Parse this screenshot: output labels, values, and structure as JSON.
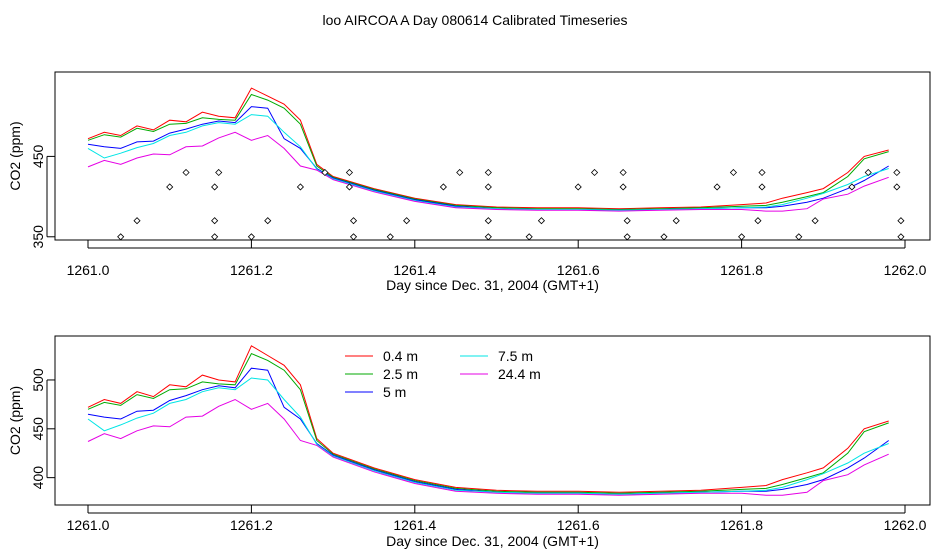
{
  "page_title": "loo AIRCOA A  Day 080614  Calibrated Timeseries",
  "chart_data": [
    {
      "type": "line",
      "panel": "top",
      "xlabel": "Day since Dec. 31, 2004 (GMT+1)",
      "ylabel": "CO2 (ppm)",
      "xlim": [
        1261.0,
        1262.0
      ],
      "ylim": [
        346,
        555
      ],
      "x_ticks": [
        "1261.0",
        "1261.2",
        "1261.4",
        "1261.6",
        "1261.8",
        "1262.0"
      ],
      "y_ticks": [
        "350",
        "450"
      ],
      "series": [
        {
          "color": "#ff0000",
          "x": [
            1261.0,
            1261.02,
            1261.04,
            1261.06,
            1261.08,
            1261.1,
            1261.12,
            1261.14,
            1261.16,
            1261.18,
            1261.2,
            1261.22,
            1261.24,
            1261.26,
            1261.28,
            1261.3,
            1261.35,
            1261.4,
            1261.45,
            1261.5,
            1261.55,
            1261.6,
            1261.65,
            1261.7,
            1261.75,
            1261.8,
            1261.83,
            1261.85,
            1261.88,
            1261.9,
            1261.93,
            1261.95,
            1261.98
          ],
          "y": [
            472,
            480,
            476,
            488,
            483,
            495,
            493,
            505,
            500,
            498,
            535,
            525,
            515,
            495,
            440,
            425,
            410,
            398,
            390,
            387,
            386,
            386,
            385,
            386,
            387,
            390,
            392,
            398,
            405,
            410,
            430,
            450,
            458
          ]
        },
        {
          "color": "#00aa00",
          "x": [
            1261.0,
            1261.02,
            1261.04,
            1261.06,
            1261.08,
            1261.1,
            1261.12,
            1261.14,
            1261.16,
            1261.18,
            1261.2,
            1261.22,
            1261.24,
            1261.26,
            1261.28,
            1261.3,
            1261.35,
            1261.4,
            1261.45,
            1261.5,
            1261.55,
            1261.6,
            1261.65,
            1261.7,
            1261.75,
            1261.8,
            1261.83,
            1261.85,
            1261.88,
            1261.9,
            1261.93,
            1261.95,
            1261.98
          ],
          "y": [
            470,
            477,
            474,
            485,
            481,
            490,
            491,
            498,
            496,
            495,
            527,
            520,
            510,
            490,
            438,
            424,
            409,
            397,
            389,
            386,
            385,
            385,
            384,
            385,
            386,
            388,
            389,
            393,
            400,
            405,
            425,
            447,
            456
          ]
        },
        {
          "color": "#0000ff",
          "x": [
            1261.0,
            1261.02,
            1261.04,
            1261.06,
            1261.08,
            1261.1,
            1261.12,
            1261.14,
            1261.16,
            1261.18,
            1261.2,
            1261.22,
            1261.24,
            1261.26,
            1261.28,
            1261.3,
            1261.35,
            1261.4,
            1261.45,
            1261.5,
            1261.55,
            1261.6,
            1261.65,
            1261.7,
            1261.75,
            1261.8,
            1261.83,
            1261.85,
            1261.88,
            1261.9,
            1261.93,
            1261.95,
            1261.98
          ],
          "y": [
            465,
            462,
            460,
            468,
            469,
            479,
            484,
            490,
            494,
            492,
            512,
            510,
            472,
            460,
            435,
            423,
            408,
            396,
            388,
            385,
            384,
            384,
            383,
            384,
            385,
            386,
            386,
            388,
            393,
            398,
            410,
            420,
            438
          ]
        },
        {
          "color": "#00e5e5",
          "x": [
            1261.0,
            1261.02,
            1261.04,
            1261.06,
            1261.08,
            1261.1,
            1261.12,
            1261.14,
            1261.16,
            1261.18,
            1261.2,
            1261.22,
            1261.24,
            1261.26,
            1261.28,
            1261.3,
            1261.35,
            1261.4,
            1261.45,
            1261.5,
            1261.55,
            1261.6,
            1261.65,
            1261.7,
            1261.75,
            1261.8,
            1261.83,
            1261.85,
            1261.88,
            1261.9,
            1261.93,
            1261.95,
            1261.98
          ],
          "y": [
            460,
            448,
            454,
            461,
            466,
            476,
            480,
            488,
            492,
            490,
            502,
            500,
            480,
            462,
            434,
            422,
            407,
            395,
            387,
            385,
            384,
            384,
            383,
            384,
            385,
            386,
            387,
            390,
            398,
            404,
            415,
            425,
            435
          ]
        },
        {
          "color": "#e500e5",
          "x": [
            1261.0,
            1261.02,
            1261.04,
            1261.06,
            1261.08,
            1261.1,
            1261.12,
            1261.14,
            1261.16,
            1261.18,
            1261.2,
            1261.22,
            1261.24,
            1261.26,
            1261.28,
            1261.3,
            1261.35,
            1261.4,
            1261.45,
            1261.5,
            1261.55,
            1261.6,
            1261.65,
            1261.7,
            1261.75,
            1261.8,
            1261.83,
            1261.85,
            1261.88,
            1261.9,
            1261.93,
            1261.95,
            1261.98
          ],
          "y": [
            437,
            445,
            440,
            448,
            453,
            452,
            462,
            463,
            473,
            480,
            470,
            476,
            460,
            438,
            433,
            421,
            406,
            394,
            386,
            384,
            383,
            383,
            382,
            383,
            384,
            384,
            382,
            382,
            385,
            397,
            403,
            413,
            424
          ]
        }
      ],
      "flag_points": [
        {
          "x": 1261.04,
          "y": 350
        },
        {
          "x": 1261.06,
          "y": 370
        },
        {
          "x": 1261.1,
          "y": 412
        },
        {
          "x": 1261.12,
          "y": 430
        },
        {
          "x": 1261.155,
          "y": 350
        },
        {
          "x": 1261.155,
          "y": 370
        },
        {
          "x": 1261.155,
          "y": 412
        },
        {
          "x": 1261.16,
          "y": 430
        },
        {
          "x": 1261.2,
          "y": 350
        },
        {
          "x": 1261.22,
          "y": 370
        },
        {
          "x": 1261.26,
          "y": 412
        },
        {
          "x": 1261.29,
          "y": 430
        },
        {
          "x": 1261.32,
          "y": 430
        },
        {
          "x": 1261.32,
          "y": 412
        },
        {
          "x": 1261.325,
          "y": 370
        },
        {
          "x": 1261.325,
          "y": 350
        },
        {
          "x": 1261.37,
          "y": 350
        },
        {
          "x": 1261.39,
          "y": 370
        },
        {
          "x": 1261.435,
          "y": 412
        },
        {
          "x": 1261.455,
          "y": 430
        },
        {
          "x": 1261.49,
          "y": 430
        },
        {
          "x": 1261.49,
          "y": 412
        },
        {
          "x": 1261.49,
          "y": 370
        },
        {
          "x": 1261.49,
          "y": 350
        },
        {
          "x": 1261.54,
          "y": 350
        },
        {
          "x": 1261.555,
          "y": 370
        },
        {
          "x": 1261.6,
          "y": 412
        },
        {
          "x": 1261.62,
          "y": 430
        },
        {
          "x": 1261.655,
          "y": 430
        },
        {
          "x": 1261.655,
          "y": 412
        },
        {
          "x": 1261.66,
          "y": 370
        },
        {
          "x": 1261.66,
          "y": 350
        },
        {
          "x": 1261.705,
          "y": 350
        },
        {
          "x": 1261.72,
          "y": 370
        },
        {
          "x": 1261.77,
          "y": 412
        },
        {
          "x": 1261.79,
          "y": 430
        },
        {
          "x": 1261.8,
          "y": 350
        },
        {
          "x": 1261.82,
          "y": 370
        },
        {
          "x": 1261.825,
          "y": 412
        },
        {
          "x": 1261.825,
          "y": 430
        },
        {
          "x": 1261.87,
          "y": 350
        },
        {
          "x": 1261.89,
          "y": 370
        },
        {
          "x": 1261.935,
          "y": 412
        },
        {
          "x": 1261.955,
          "y": 430
        },
        {
          "x": 1261.99,
          "y": 430
        },
        {
          "x": 1261.99,
          "y": 412
        },
        {
          "x": 1261.995,
          "y": 370
        },
        {
          "x": 1261.995,
          "y": 350
        }
      ]
    },
    {
      "type": "line",
      "panel": "bottom",
      "xlabel": "Day since Dec. 31, 2004 (GMT+1)",
      "ylabel": "CO2 (ppm)",
      "xlim": [
        1261.0,
        1262.0
      ],
      "ylim": [
        372,
        545
      ],
      "x_ticks": [
        "1261.0",
        "1261.2",
        "1261.4",
        "1261.6",
        "1261.8",
        "1262.0"
      ],
      "y_ticks": [
        "400",
        "450",
        "500"
      ],
      "legend": "top-left",
      "series": [
        {
          "name": "0.4 m",
          "color": "#ff0000",
          "x": [
            1261.0,
            1261.02,
            1261.04,
            1261.06,
            1261.08,
            1261.1,
            1261.12,
            1261.14,
            1261.16,
            1261.18,
            1261.2,
            1261.22,
            1261.24,
            1261.26,
            1261.28,
            1261.3,
            1261.35,
            1261.4,
            1261.45,
            1261.5,
            1261.55,
            1261.6,
            1261.65,
            1261.7,
            1261.75,
            1261.8,
            1261.83,
            1261.85,
            1261.88,
            1261.9,
            1261.93,
            1261.95,
            1261.98
          ],
          "y": [
            472,
            480,
            476,
            488,
            483,
            495,
            493,
            505,
            500,
            498,
            535,
            525,
            515,
            495,
            440,
            425,
            410,
            398,
            390,
            387,
            386,
            386,
            385,
            386,
            387,
            390,
            392,
            398,
            405,
            410,
            430,
            450,
            458
          ]
        },
        {
          "name": "2.5 m",
          "color": "#00aa00",
          "x": [
            1261.0,
            1261.02,
            1261.04,
            1261.06,
            1261.08,
            1261.1,
            1261.12,
            1261.14,
            1261.16,
            1261.18,
            1261.2,
            1261.22,
            1261.24,
            1261.26,
            1261.28,
            1261.3,
            1261.35,
            1261.4,
            1261.45,
            1261.5,
            1261.55,
            1261.6,
            1261.65,
            1261.7,
            1261.75,
            1261.8,
            1261.83,
            1261.85,
            1261.88,
            1261.9,
            1261.93,
            1261.95,
            1261.98
          ],
          "y": [
            470,
            477,
            474,
            485,
            481,
            490,
            491,
            498,
            496,
            495,
            527,
            520,
            510,
            490,
            438,
            424,
            409,
            397,
            389,
            386,
            385,
            385,
            384,
            385,
            386,
            388,
            389,
            393,
            400,
            405,
            425,
            447,
            456
          ]
        },
        {
          "name": "5 m",
          "color": "#0000ff",
          "x": [
            1261.0,
            1261.02,
            1261.04,
            1261.06,
            1261.08,
            1261.1,
            1261.12,
            1261.14,
            1261.16,
            1261.18,
            1261.2,
            1261.22,
            1261.24,
            1261.26,
            1261.28,
            1261.3,
            1261.35,
            1261.4,
            1261.45,
            1261.5,
            1261.55,
            1261.6,
            1261.65,
            1261.7,
            1261.75,
            1261.8,
            1261.83,
            1261.85,
            1261.88,
            1261.9,
            1261.93,
            1261.95,
            1261.98
          ],
          "y": [
            465,
            462,
            460,
            468,
            469,
            479,
            484,
            490,
            494,
            492,
            512,
            510,
            472,
            460,
            435,
            423,
            408,
            396,
            388,
            385,
            384,
            384,
            383,
            384,
            385,
            386,
            386,
            388,
            393,
            398,
            410,
            420,
            438
          ]
        },
        {
          "name": "7.5 m",
          "color": "#00e5e5",
          "x": [
            1261.0,
            1261.02,
            1261.04,
            1261.06,
            1261.08,
            1261.1,
            1261.12,
            1261.14,
            1261.16,
            1261.18,
            1261.2,
            1261.22,
            1261.24,
            1261.26,
            1261.28,
            1261.3,
            1261.35,
            1261.4,
            1261.45,
            1261.5,
            1261.55,
            1261.6,
            1261.65,
            1261.7,
            1261.75,
            1261.8,
            1261.83,
            1261.85,
            1261.88,
            1261.9,
            1261.93,
            1261.95,
            1261.98
          ],
          "y": [
            460,
            448,
            454,
            461,
            466,
            476,
            480,
            488,
            492,
            490,
            502,
            500,
            480,
            462,
            434,
            422,
            407,
            395,
            387,
            385,
            384,
            384,
            383,
            384,
            385,
            386,
            387,
            390,
            398,
            404,
            415,
            425,
            435
          ]
        },
        {
          "name": "24.4 m",
          "color": "#e500e5",
          "x": [
            1261.0,
            1261.02,
            1261.04,
            1261.06,
            1261.08,
            1261.1,
            1261.12,
            1261.14,
            1261.16,
            1261.18,
            1261.2,
            1261.22,
            1261.24,
            1261.26,
            1261.28,
            1261.3,
            1261.35,
            1261.4,
            1261.45,
            1261.5,
            1261.55,
            1261.6,
            1261.65,
            1261.7,
            1261.75,
            1261.8,
            1261.83,
            1261.85,
            1261.88,
            1261.9,
            1261.93,
            1261.95,
            1261.98
          ],
          "y": [
            437,
            445,
            440,
            448,
            453,
            452,
            462,
            463,
            473,
            480,
            470,
            476,
            460,
            438,
            433,
            421,
            406,
            394,
            386,
            384,
            383,
            383,
            382,
            383,
            384,
            384,
            382,
            382,
            385,
            397,
            403,
            413,
            424
          ]
        }
      ]
    }
  ]
}
